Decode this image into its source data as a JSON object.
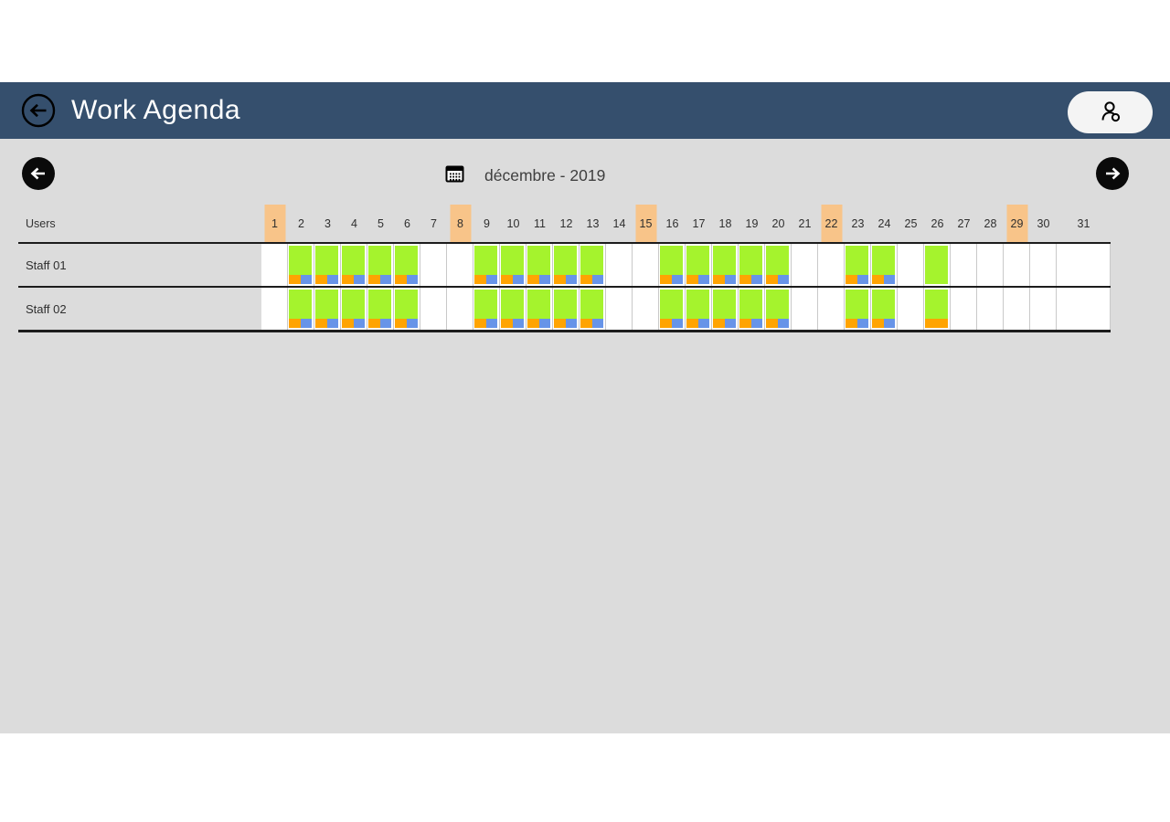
{
  "colors": {
    "appbar_bg": "#354f6d",
    "content_bg": "#dcdcdc",
    "weekend_highlight": "#f8c489",
    "work_green": "#a5f32d",
    "indicator_orange": "#ffa402",
    "indicator_blue": "#6794e8",
    "grid_line": "#c9c9c9",
    "row_line": "#1c1c1c"
  },
  "appbar": {
    "title": "Work Agenda",
    "back_icon": "back-arrow",
    "user_button_icon": "user-search"
  },
  "navigation": {
    "month_label": "décembre - 2019",
    "calendar_icon": "calendar",
    "prev_icon": "arrow-left",
    "next_icon": "arrow-right"
  },
  "schedule": {
    "users_header": "Users",
    "days": [
      1,
      2,
      3,
      4,
      5,
      6,
      7,
      8,
      9,
      10,
      11,
      12,
      13,
      14,
      15,
      16,
      17,
      18,
      19,
      20,
      21,
      22,
      23,
      24,
      25,
      26,
      27,
      28,
      29,
      30,
      31
    ],
    "weekend_days": [
      1,
      8,
      15,
      22,
      29
    ],
    "rows": [
      {
        "name": "Staff 01",
        "cells": [
          "",
          "ob",
          "ob",
          "ob",
          "ob",
          "ob",
          "",
          "",
          "ob",
          "ob",
          "ob",
          "ob",
          "ob",
          "",
          "",
          "ob",
          "ob",
          "ob",
          "ob",
          "ob",
          "",
          "",
          "ob",
          "ob",
          "",
          "g",
          "",
          "",
          "",
          "",
          ""
        ]
      },
      {
        "name": "Staff 02",
        "cells": [
          "",
          "ob",
          "ob",
          "ob",
          "ob",
          "ob",
          "",
          "",
          "ob",
          "ob",
          "ob",
          "ob",
          "ob",
          "",
          "",
          "ob",
          "ob",
          "ob",
          "ob",
          "ob",
          "",
          "",
          "ob",
          "ob",
          "",
          "o",
          "",
          "",
          "",
          "",
          ""
        ]
      }
    ]
  }
}
